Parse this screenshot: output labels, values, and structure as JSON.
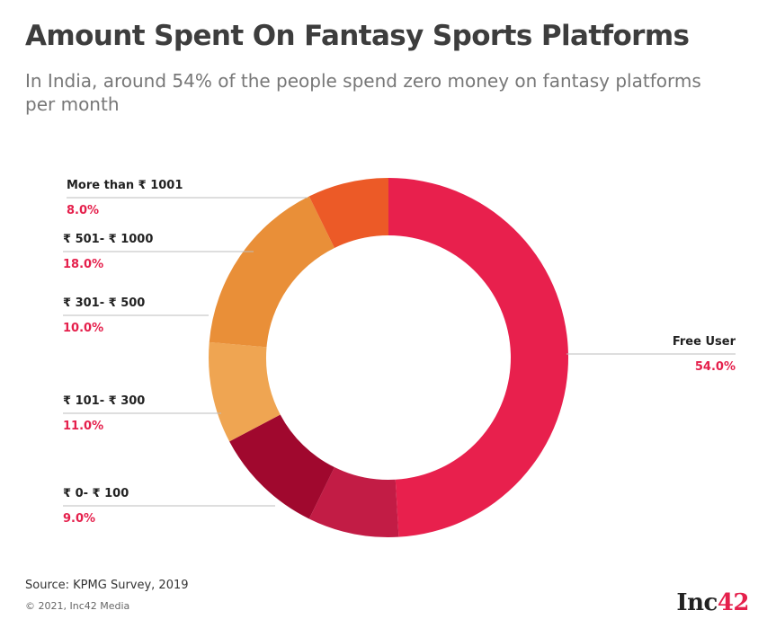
{
  "header": {
    "title": "Amount Spent On Fantasy Sports Platforms",
    "subtitle": "In India, around 54% of the people spend zero money on fantasy platforms per month"
  },
  "chart_data": {
    "type": "pie",
    "title": "Amount Spent On Fantasy Sports Platforms",
    "subtitle": "In India, around 54% of the people spend zero money on fantasy platforms per month",
    "donut": true,
    "unit": "%",
    "categories": [
      "Free User",
      "₹ 0- ₹ 100",
      "₹ 101- ₹ 300",
      "₹ 301- ₹ 500",
      "₹ 501- ₹ 1000",
      "More than ₹ 1001"
    ],
    "values": [
      54.0,
      9.0,
      11.0,
      10.0,
      18.0,
      8.0
    ],
    "value_labels": [
      "54.0%",
      "9.0%",
      "11.0%",
      "10.0%",
      "18.0%",
      "8.0%"
    ],
    "colors": [
      "#e8204d",
      "#c21c45",
      "#a0082e",
      "#efa552",
      "#e98f38",
      "#ec5a27"
    ],
    "label_value_color": "#e5204c"
  },
  "footer": {
    "source": "Source: KPMG Survey, 2019",
    "copyright": "© 2021, Inc42 Media",
    "logo_text": "Inc",
    "logo_number": "42"
  }
}
